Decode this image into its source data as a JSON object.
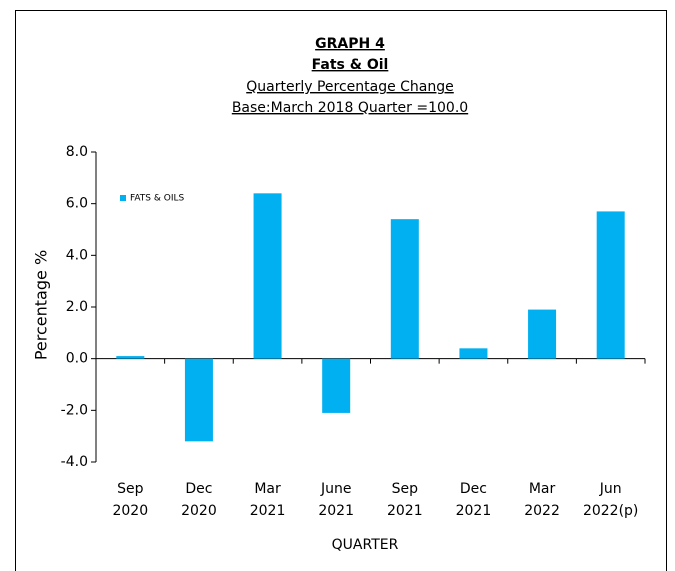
{
  "chart_data": {
    "type": "bar",
    "title": "GRAPH 4",
    "subtitle": "Fats & Oil",
    "subtitle2": "Quarterly Percentage Change",
    "subtitle3": "Base:March 2018 Quarter =100.0",
    "x_label": "QUARTER",
    "y_label": "Percentage %",
    "categories": [
      [
        "Sep",
        "2020"
      ],
      [
        "Dec",
        "2020"
      ],
      [
        "Mar",
        "2021"
      ],
      [
        "June",
        "2021"
      ],
      [
        "Sep",
        "2021"
      ],
      [
        "Dec",
        "2021"
      ],
      [
        "Mar",
        "2022"
      ],
      [
        "Jun",
        "2022(p)"
      ]
    ],
    "series": [
      {
        "name": "FATS & OILS",
        "color": "#00b0f0",
        "values": [
          0.1,
          -3.2,
          6.4,
          -2.1,
          5.4,
          0.4,
          1.9,
          5.7
        ]
      }
    ],
    "ylim": [
      -4,
      8
    ],
    "yticks": [
      {
        "value": -4,
        "label": "-4.0"
      },
      {
        "value": -2,
        "label": "-2.0"
      },
      {
        "value": 0,
        "label": "0.0"
      },
      {
        "value": 2,
        "label": "2.0"
      },
      {
        "value": 4,
        "label": "4.0"
      },
      {
        "value": 6,
        "label": "6.0"
      },
      {
        "value": 8,
        "label": "8.0"
      }
    ],
    "legend": "upper-left"
  }
}
